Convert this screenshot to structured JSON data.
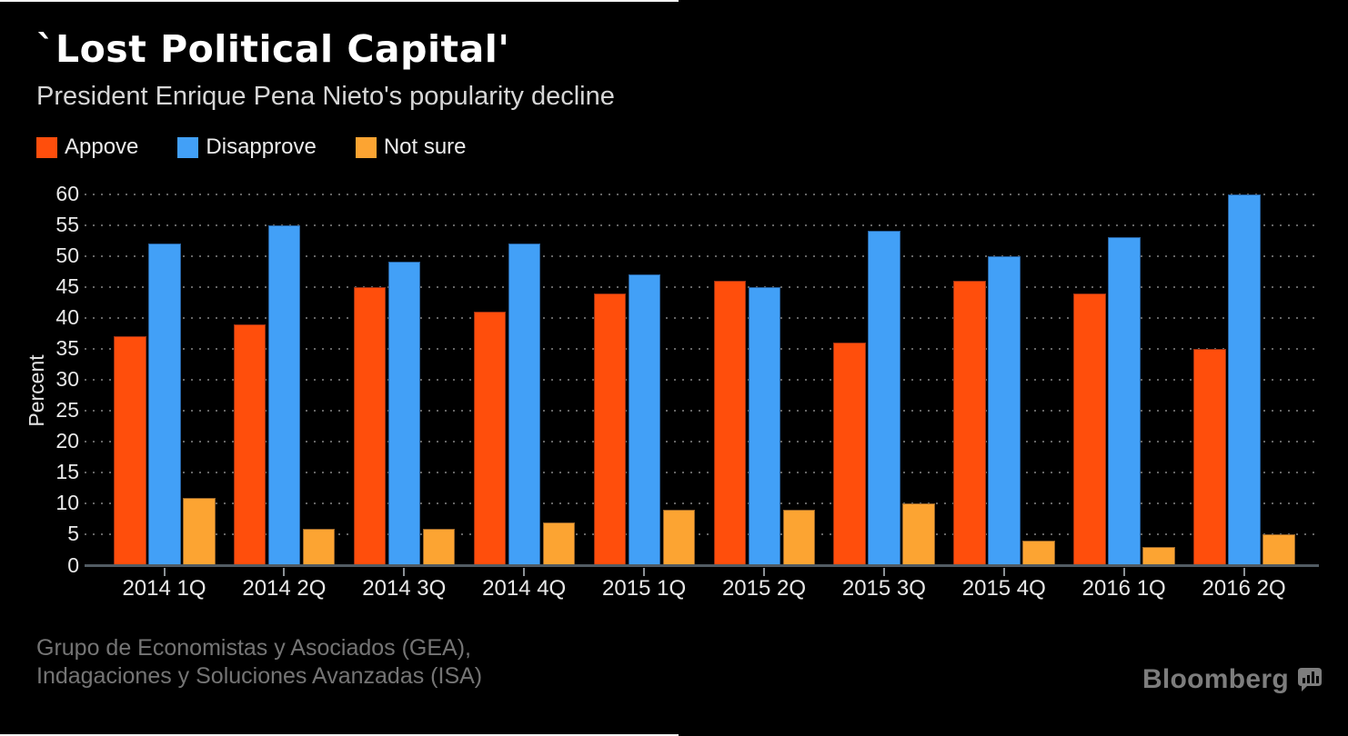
{
  "chart_data": {
    "type": "bar",
    "title": "`Lost Political Capital'",
    "subtitle": "President Enrique Pena Nieto's popularity decline",
    "ylabel": "Percent",
    "ylim": [
      0,
      60
    ],
    "ytick_step": 5,
    "grid": "horizontal-dotted",
    "legend_position": "top-left",
    "background": "#000000",
    "categories": [
      "2014 1Q",
      "2014 2Q",
      "2014 3Q",
      "2014 4Q",
      "2015 1Q",
      "2015 2Q",
      "2015 3Q",
      "2015 4Q",
      "2016 1Q",
      "2016 2Q"
    ],
    "series": [
      {
        "name": "Appove",
        "color": "#FF4E0C",
        "values": [
          37,
          39,
          45,
          41,
          44,
          46,
          36,
          46,
          44,
          35
        ]
      },
      {
        "name": "Disapprove",
        "color": "#42A0F7",
        "values": [
          52,
          55,
          49,
          52,
          47,
          45,
          54,
          50,
          53,
          60
        ]
      },
      {
        "name": "Not sure",
        "color": "#FCA432",
        "values": [
          11,
          6,
          6,
          7,
          9,
          9,
          10,
          4,
          3,
          5
        ]
      }
    ]
  },
  "footer": {
    "source_line1": "Grupo de Economistas y Asociados (GEA),",
    "source_line2": "Indagaciones y Soluciones Avanzadas (ISA)",
    "brand": "Bloomberg"
  }
}
